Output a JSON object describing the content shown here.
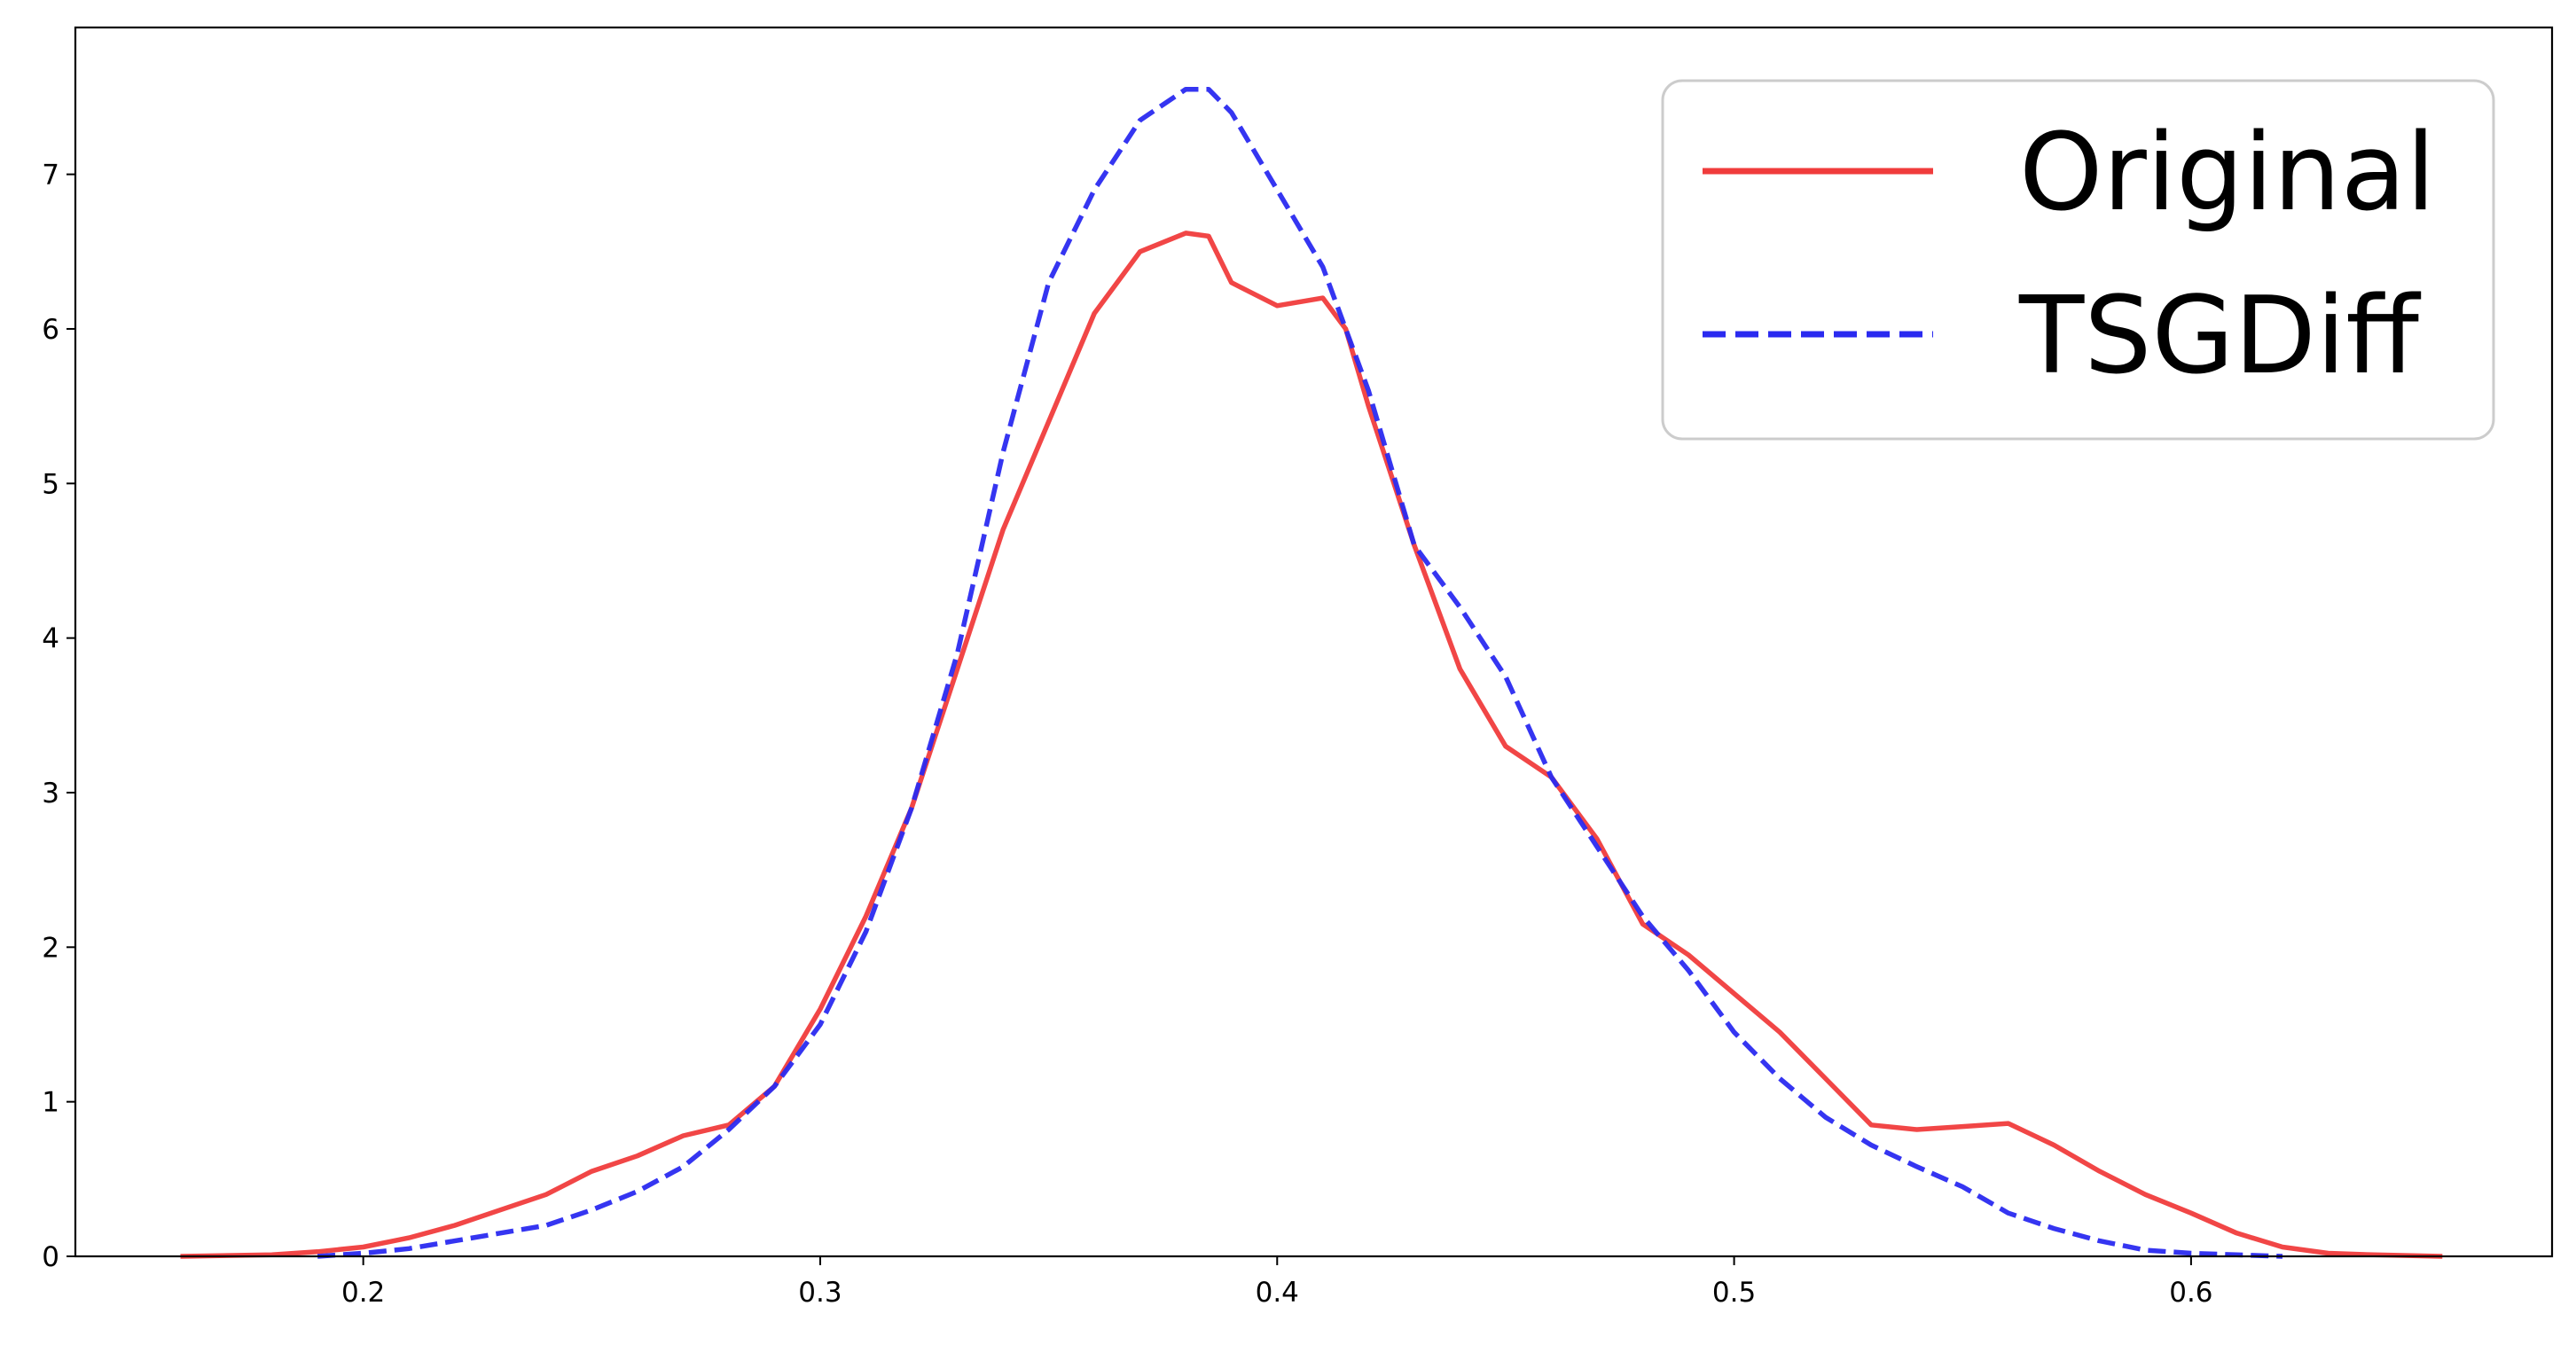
{
  "chart_data": {
    "type": "line",
    "title": "",
    "xlabel": "",
    "ylabel": "",
    "xlim": [
      0.137,
      0.679
    ],
    "ylim": [
      0,
      7.95
    ],
    "x_ticks": [
      "0.2",
      "0.3",
      "0.4",
      "0.5",
      "0.6"
    ],
    "y_ticks": [
      "0",
      "1",
      "2",
      "3",
      "4",
      "5",
      "6",
      "7"
    ],
    "grid": false,
    "legend_position": "top-right",
    "series": [
      {
        "name": "Original",
        "color": "#f03c3c",
        "style": "solid",
        "x": [
          0.16,
          0.18,
          0.19,
          0.2,
          0.21,
          0.22,
          0.23,
          0.24,
          0.25,
          0.26,
          0.27,
          0.28,
          0.29,
          0.3,
          0.31,
          0.32,
          0.33,
          0.34,
          0.35,
          0.36,
          0.37,
          0.38,
          0.385,
          0.39,
          0.4,
          0.41,
          0.415,
          0.42,
          0.43,
          0.44,
          0.45,
          0.46,
          0.47,
          0.48,
          0.49,
          0.5,
          0.51,
          0.52,
          0.53,
          0.54,
          0.55,
          0.56,
          0.57,
          0.58,
          0.59,
          0.6,
          0.61,
          0.62,
          0.63,
          0.64,
          0.655
        ],
        "values": [
          0.0,
          0.01,
          0.03,
          0.06,
          0.12,
          0.2,
          0.3,
          0.4,
          0.55,
          0.65,
          0.78,
          0.85,
          1.1,
          1.6,
          2.2,
          2.9,
          3.8,
          4.7,
          5.4,
          6.1,
          6.5,
          6.62,
          6.6,
          6.3,
          6.15,
          6.2,
          6.0,
          5.5,
          4.6,
          3.8,
          3.3,
          3.1,
          2.7,
          2.15,
          1.95,
          1.7,
          1.45,
          1.15,
          0.85,
          0.82,
          0.84,
          0.86,
          0.72,
          0.55,
          0.4,
          0.28,
          0.15,
          0.06,
          0.02,
          0.01,
          0.0
        ]
      },
      {
        "name": "TSGDiff",
        "color": "#2a2af0",
        "style": "dashed",
        "x": [
          0.19,
          0.2,
          0.21,
          0.22,
          0.23,
          0.24,
          0.25,
          0.26,
          0.27,
          0.28,
          0.29,
          0.3,
          0.31,
          0.32,
          0.33,
          0.34,
          0.35,
          0.36,
          0.37,
          0.38,
          0.385,
          0.39,
          0.4,
          0.41,
          0.42,
          0.43,
          0.44,
          0.45,
          0.46,
          0.47,
          0.48,
          0.49,
          0.5,
          0.51,
          0.52,
          0.53,
          0.54,
          0.55,
          0.56,
          0.57,
          0.58,
          0.59,
          0.6,
          0.61,
          0.62
        ],
        "values": [
          0.0,
          0.02,
          0.05,
          0.1,
          0.15,
          0.2,
          0.3,
          0.42,
          0.58,
          0.82,
          1.1,
          1.5,
          2.1,
          2.9,
          3.9,
          5.2,
          6.3,
          6.9,
          7.35,
          7.55,
          7.55,
          7.4,
          6.9,
          6.4,
          5.6,
          4.6,
          4.2,
          3.75,
          3.1,
          2.65,
          2.2,
          1.85,
          1.45,
          1.15,
          0.9,
          0.72,
          0.58,
          0.45,
          0.28,
          0.18,
          0.1,
          0.04,
          0.02,
          0.01,
          0.0
        ]
      }
    ]
  }
}
